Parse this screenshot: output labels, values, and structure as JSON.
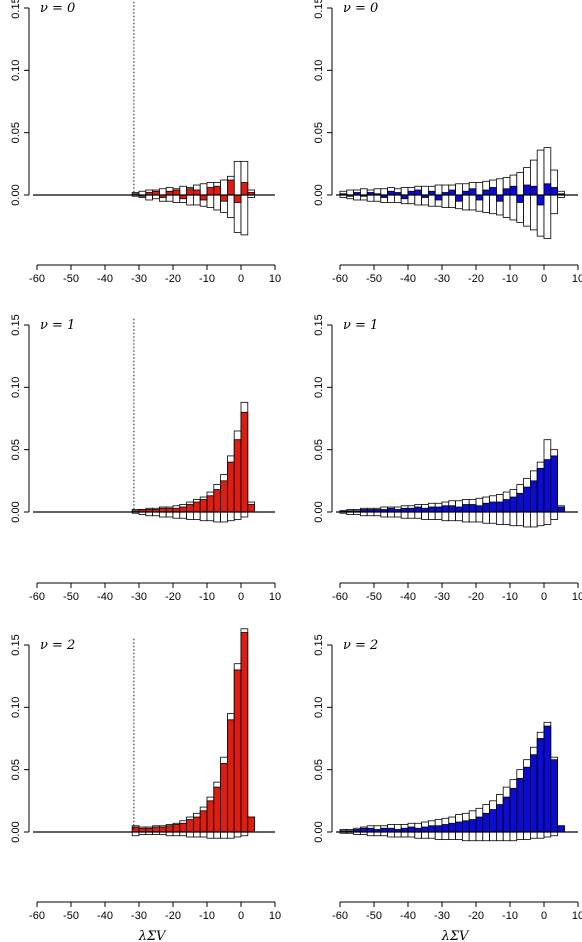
{
  "chart_data": [
    {
      "type": "histogram",
      "title": "ν = 0",
      "vline": -31.5,
      "bins": [
        -32,
        -30,
        -28,
        -26,
        -24,
        -22,
        -20,
        -18,
        -16,
        -14,
        -12,
        -10,
        -8,
        -6,
        -4,
        -2,
        0,
        2,
        4
      ],
      "series": [
        {
          "color": "#ffffff",
          "values": [
            0.002,
            0.003,
            0.004,
            0.004,
            0.005,
            0.006,
            0.005,
            0.007,
            0.006,
            0.008,
            0.009,
            0.01,
            0.01,
            0.012,
            0.015,
            0.027,
            0.027,
            0.004
          ]
        },
        {
          "color": "#ffffff",
          "values": [
            -0.001,
            -0.002,
            -0.004,
            -0.003,
            -0.005,
            -0.005,
            -0.006,
            -0.006,
            -0.008,
            -0.008,
            -0.009,
            -0.01,
            -0.012,
            -0.014,
            -0.018,
            -0.03,
            -0.032,
            -0.002
          ]
        },
        {
          "color": "#dd1c12",
          "values": [
            0.001,
            -0.001,
            0.002,
            0.003,
            -0.002,
            0.003,
            0.004,
            -0.003,
            0.005,
            0.004,
            -0.004,
            0.006,
            0.007,
            -0.005,
            0.012,
            -0.006,
            0.01,
            0.002
          ]
        }
      ],
      "xlim": [
        -60,
        10
      ],
      "xticks": [
        -60,
        -50,
        -40,
        -30,
        -20,
        -10,
        0,
        10
      ],
      "ylim": [
        -0.05,
        0.155
      ],
      "yticks": [
        {
          "value": 0,
          "label": "0.00"
        },
        0.05,
        {
          "value": 0.1,
          "label": "0.10"
        },
        0.15
      ]
    },
    {
      "type": "histogram",
      "title": "ν = 0",
      "bins": [
        -60,
        -58,
        -56,
        -54,
        -52,
        -50,
        -48,
        -46,
        -44,
        -42,
        -40,
        -38,
        -36,
        -34,
        -32,
        -30,
        -28,
        -26,
        -24,
        -22,
        -20,
        -18,
        -16,
        -14,
        -12,
        -10,
        -8,
        -6,
        -4,
        -2,
        0,
        2,
        4,
        6
      ],
      "series": [
        {
          "color": "#ffffff",
          "values": [
            0.003,
            0.004,
            0.004,
            0.005,
            0.004,
            0.005,
            0.005,
            0.006,
            0.005,
            0.006,
            0.006,
            0.007,
            0.007,
            0.007,
            0.008,
            0.008,
            0.008,
            0.009,
            0.009,
            0.01,
            0.01,
            0.011,
            0.012,
            0.013,
            0.014,
            0.016,
            0.018,
            0.022,
            0.028,
            0.036,
            0.038,
            0.02,
            0.003
          ]
        },
        {
          "color": "#ffffff",
          "values": [
            -0.002,
            -0.003,
            -0.004,
            -0.004,
            -0.005,
            -0.005,
            -0.006,
            -0.006,
            -0.006,
            -0.007,
            -0.007,
            -0.008,
            -0.008,
            -0.009,
            -0.009,
            -0.01,
            -0.01,
            -0.011,
            -0.012,
            -0.012,
            -0.013,
            -0.014,
            -0.015,
            -0.016,
            -0.018,
            -0.02,
            -0.022,
            -0.025,
            -0.028,
            -0.033,
            -0.035,
            -0.015,
            -0.002
          ]
        },
        {
          "color": "#0c0cd0",
          "values": [
            0.001,
            -0.001,
            0.002,
            -0.001,
            0.002,
            0.001,
            -0.002,
            0.003,
            0.002,
            -0.003,
            0.003,
            0.004,
            -0.002,
            0.003,
            -0.004,
            0.002,
            0.004,
            -0.005,
            0.003,
            0.005,
            -0.004,
            0.004,
            0.006,
            -0.005,
            0.005,
            0.007,
            -0.006,
            0.008,
            0.007,
            -0.008,
            0.009,
            0.006,
            0.001
          ]
        }
      ],
      "xlim": [
        -60,
        10
      ],
      "xticks": [
        -60,
        -50,
        -40,
        -30,
        -20,
        -10,
        0,
        10
      ],
      "ylim": [
        -0.05,
        0.155
      ],
      "yticks": [
        {
          "value": 0,
          "label": "0.00"
        },
        0.05,
        {
          "value": 0.1,
          "label": "0.10"
        },
        0.15
      ]
    },
    {
      "type": "histogram",
      "title": "ν = 1",
      "vline": -31.5,
      "bins": [
        -32,
        -30,
        -28,
        -26,
        -24,
        -22,
        -20,
        -18,
        -16,
        -14,
        -12,
        -10,
        -8,
        -6,
        -4,
        -2,
        0,
        2,
        4
      ],
      "series": [
        {
          "color": "#ffffff",
          "values": [
            0.002,
            0.002,
            0.003,
            0.003,
            0.004,
            0.004,
            0.005,
            0.006,
            0.008,
            0.01,
            0.012,
            0.016,
            0.022,
            0.03,
            0.045,
            0.065,
            0.088,
            0.008
          ]
        },
        {
          "color": "#ffffff",
          "values": [
            -0.001,
            -0.002,
            -0.003,
            -0.003,
            -0.004,
            -0.004,
            -0.005,
            -0.005,
            -0.006,
            -0.006,
            -0.007,
            -0.007,
            -0.008,
            -0.008,
            -0.007,
            -0.006,
            -0.004,
            0
          ]
        },
        {
          "color": "#dd1c12",
          "values": [
            0.001,
            0.002,
            0.002,
            0.002,
            0.003,
            0.003,
            0.003,
            0.004,
            0.006,
            0.008,
            0.01,
            0.013,
            0.018,
            0.025,
            0.04,
            0.058,
            0.08,
            0.006
          ]
        }
      ],
      "xlim": [
        -60,
        10
      ],
      "xticks": [
        -60,
        -50,
        -40,
        -30,
        -20,
        -10,
        0,
        10
      ],
      "ylim": [
        -0.05,
        0.155
      ],
      "yticks": [
        {
          "value": 0,
          "label": "0.00"
        },
        0.05,
        {
          "value": 0.1,
          "label": "0.10"
        },
        0.15
      ]
    },
    {
      "type": "histogram",
      "title": "ν = 1",
      "bins": [
        -60,
        -58,
        -56,
        -54,
        -52,
        -50,
        -48,
        -46,
        -44,
        -42,
        -40,
        -38,
        -36,
        -34,
        -32,
        -30,
        -28,
        -26,
        -24,
        -22,
        -20,
        -18,
        -16,
        -14,
        -12,
        -10,
        -8,
        -6,
        -4,
        -2,
        0,
        2,
        4,
        6
      ],
      "series": [
        {
          "color": "#ffffff",
          "values": [
            0.001,
            0.002,
            0.002,
            0.003,
            0.003,
            0.003,
            0.004,
            0.004,
            0.004,
            0.005,
            0.005,
            0.006,
            0.006,
            0.007,
            0.007,
            0.008,
            0.009,
            0.009,
            0.01,
            0.01,
            0.011,
            0.012,
            0.013,
            0.014,
            0.016,
            0.018,
            0.022,
            0.027,
            0.033,
            0.04,
            0.058,
            0.05,
            0.005
          ]
        },
        {
          "color": "#ffffff",
          "values": [
            -0.001,
            -0.002,
            -0.002,
            -0.003,
            -0.003,
            -0.003,
            -0.004,
            -0.004,
            -0.004,
            -0.005,
            -0.005,
            -0.005,
            -0.006,
            -0.006,
            -0.006,
            -0.007,
            -0.007,
            -0.007,
            -0.008,
            -0.008,
            -0.008,
            -0.009,
            -0.009,
            -0.01,
            -0.01,
            -0.011,
            -0.011,
            -0.012,
            -0.012,
            -0.011,
            -0.01,
            -0.006,
            0
          ]
        },
        {
          "color": "#0c0cd0",
          "values": [
            0.001,
            0.001,
            0.001,
            0.002,
            0.002,
            0.002,
            0.002,
            0.003,
            0.002,
            0.003,
            0.003,
            0.004,
            0.003,
            0.004,
            0.004,
            0.005,
            0.005,
            0.004,
            0.006,
            0.006,
            0.005,
            0.007,
            0.008,
            0.008,
            0.01,
            0.012,
            0.015,
            0.02,
            0.025,
            0.035,
            0.042,
            0.045,
            0.004
          ]
        }
      ],
      "xlim": [
        -60,
        10
      ],
      "xticks": [
        -60,
        -50,
        -40,
        -30,
        -20,
        -10,
        0,
        10
      ],
      "ylim": [
        -0.05,
        0.155
      ],
      "yticks": [
        {
          "value": 0,
          "label": "0.00"
        },
        0.05,
        {
          "value": 0.1,
          "label": "0.10"
        },
        0.15
      ]
    },
    {
      "type": "histogram",
      "title": "ν = 2",
      "vline": -31.5,
      "x_label": "λΣV",
      "bins": [
        -32,
        -30,
        -28,
        -26,
        -24,
        -22,
        -20,
        -18,
        -16,
        -14,
        -12,
        -10,
        -8,
        -6,
        -4,
        -2,
        0,
        2,
        4
      ],
      "series": [
        {
          "color": "#ffffff",
          "values": [
            0.005,
            0.004,
            0.004,
            0.005,
            0.005,
            0.006,
            0.007,
            0.009,
            0.012,
            0.015,
            0.02,
            0.028,
            0.04,
            0.06,
            0.095,
            0.135,
            0.163,
            0.012
          ]
        },
        {
          "color": "#ffffff",
          "values": [
            -0.003,
            -0.002,
            -0.002,
            -0.002,
            -0.002,
            -0.003,
            -0.003,
            -0.003,
            -0.004,
            -0.004,
            -0.004,
            -0.005,
            -0.005,
            -0.005,
            -0.005,
            -0.004,
            -0.003,
            0
          ]
        },
        {
          "color": "#dd1c12",
          "values": [
            0.004,
            0.003,
            0.003,
            0.004,
            0.004,
            0.005,
            0.006,
            0.007,
            0.01,
            0.012,
            0.017,
            0.025,
            0.036,
            0.055,
            0.09,
            0.13,
            0.16,
            0.012
          ]
        }
      ],
      "xlim": [
        -60,
        10
      ],
      "xticks": [
        -60,
        -50,
        -40,
        -30,
        -20,
        -10,
        0,
        10
      ],
      "ylim": [
        -0.05,
        0.155
      ],
      "yticks": [
        {
          "value": 0,
          "label": "0.00"
        },
        0.05,
        {
          "value": 0.1,
          "label": "0.10"
        },
        0.15
      ]
    },
    {
      "type": "histogram",
      "title": "ν = 2",
      "x_label": "λΣV",
      "bins": [
        -60,
        -58,
        -56,
        -54,
        -52,
        -50,
        -48,
        -46,
        -44,
        -42,
        -40,
        -38,
        -36,
        -34,
        -32,
        -30,
        -28,
        -26,
        -24,
        -22,
        -20,
        -18,
        -16,
        -14,
        -12,
        -10,
        -8,
        -6,
        -4,
        -2,
        0,
        2,
        4,
        6
      ],
      "series": [
        {
          "color": "#ffffff",
          "values": [
            0.002,
            0.002,
            0.003,
            0.004,
            0.005,
            0.005,
            0.005,
            0.006,
            0.006,
            0.006,
            0.007,
            0.007,
            0.008,
            0.009,
            0.01,
            0.011,
            0.012,
            0.014,
            0.015,
            0.017,
            0.019,
            0.022,
            0.025,
            0.03,
            0.036,
            0.042,
            0.05,
            0.058,
            0.068,
            0.08,
            0.088,
            0.06,
            0.005
          ]
        },
        {
          "color": "#ffffff",
          "values": [
            -0.001,
            -0.001,
            -0.002,
            -0.002,
            -0.003,
            -0.003,
            -0.003,
            -0.004,
            -0.004,
            -0.004,
            -0.004,
            -0.005,
            -0.005,
            -0.005,
            -0.006,
            -0.006,
            -0.006,
            -0.006,
            -0.007,
            -0.007,
            -0.007,
            -0.007,
            -0.007,
            -0.007,
            -0.007,
            -0.007,
            -0.006,
            -0.006,
            -0.005,
            -0.005,
            -0.004,
            -0.003,
            0
          ]
        },
        {
          "color": "#0c0cd0",
          "values": [
            0.001,
            0.001,
            0.002,
            0.003,
            0.003,
            0.002,
            0.003,
            0.003,
            0.002,
            0.003,
            0.004,
            0.003,
            0.004,
            0.005,
            0.005,
            0.006,
            0.007,
            0.008,
            0.009,
            0.01,
            0.012,
            0.015,
            0.018,
            0.022,
            0.028,
            0.035,
            0.043,
            0.052,
            0.062,
            0.075,
            0.085,
            0.058,
            0.005
          ]
        }
      ],
      "xlim": [
        -60,
        10
      ],
      "xticks": [
        -60,
        -50,
        -40,
        -30,
        -20,
        -10,
        0,
        10
      ],
      "ylim": [
        -0.05,
        0.155
      ],
      "yticks": [
        {
          "value": 0,
          "label": "0.00"
        },
        0.05,
        {
          "value": 0.1,
          "label": "0.10"
        },
        0.15
      ]
    }
  ]
}
